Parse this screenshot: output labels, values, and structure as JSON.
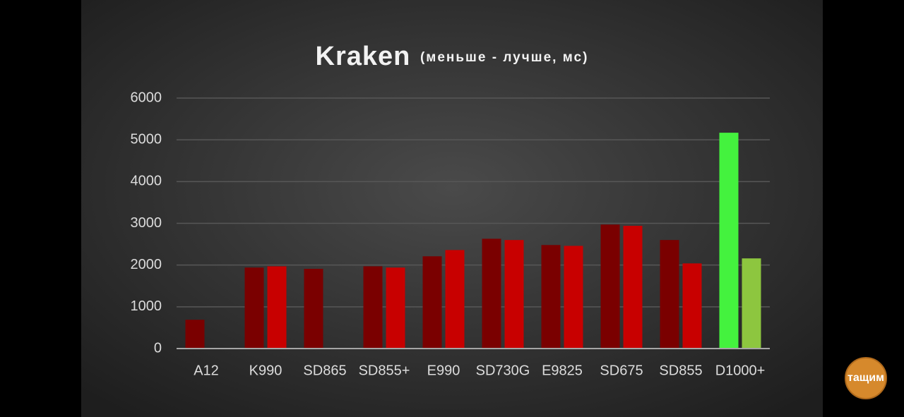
{
  "chart_data": {
    "type": "bar",
    "title": "Kraken",
    "subtitle": "(меньше - лучше, мс)",
    "categories": [
      "A12",
      "K990",
      "SD865",
      "SD855+",
      "E990",
      "SD730G",
      "E9825",
      "SD675",
      "SD855",
      "D1000+"
    ],
    "series": [
      {
        "values": [
          690,
          1940,
          1910,
          1970,
          2210,
          2630,
          2480,
          2970,
          2600,
          5170
        ],
        "colors": [
          "#7a0000",
          "#7a0000",
          "#7a0000",
          "#7a0000",
          "#7a0000",
          "#7a0000",
          "#7a0000",
          "#7a0000",
          "#7a0000",
          "#44f23e"
        ]
      },
      {
        "values": [
          null,
          1970,
          null,
          1940,
          2360,
          2600,
          2460,
          2940,
          2040,
          2160
        ],
        "colors": [
          "#c80000",
          "#c80000",
          "#c80000",
          "#c80000",
          "#c80000",
          "#c80000",
          "#c80000",
          "#c80000",
          "#c80000",
          "#8dc63f"
        ]
      }
    ],
    "ylim": [
      0,
      6000
    ],
    "yticks": [
      0,
      1000,
      2000,
      3000,
      4000,
      5000,
      6000
    ],
    "grid": true
  },
  "watermark": "тащим"
}
